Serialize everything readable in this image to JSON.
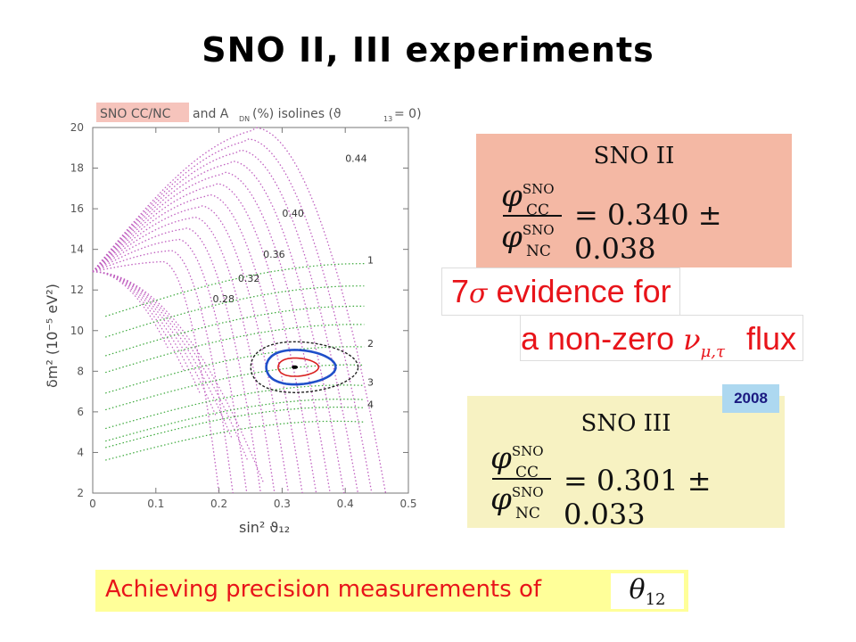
{
  "title": "SNO II, III experiments",
  "chart_data": {
    "type": "line",
    "title_box": "SNO  CC/NC",
    "title_rest": "and  A",
    "title_sub": "DN",
    "title_tail": "(%)  isolines  (ϑ",
    "title_sub2": "13",
    "title_end": "= 0)",
    "xlabel": "sin² ϑ₁₂",
    "ylabel": "δm²  (10⁻⁵ eV²)",
    "xlim": [
      0,
      0.5
    ],
    "ylim": [
      2,
      20
    ],
    "xticks": [
      "0",
      "0.1",
      "0.2",
      "0.3",
      "0.4",
      "0.5"
    ],
    "yticks": [
      "2",
      "4",
      "6",
      "8",
      "10",
      "12",
      "14",
      "16",
      "18",
      "20"
    ],
    "ccnc_isolines": [
      {
        "label": "0.28",
        "label_at": [
          0.19,
          11.4
        ]
      },
      {
        "label": "0.32",
        "label_at": [
          0.23,
          12.4
        ]
      },
      {
        "label": "0.36",
        "label_at": [
          0.27,
          13.6
        ]
      },
      {
        "label": "0.40",
        "label_at": [
          0.3,
          15.6
        ]
      },
      {
        "label": "0.44",
        "label_at": [
          0.4,
          18.3
        ]
      }
    ],
    "adn_isolines": [
      {
        "label": "1",
        "label_at": [
          0.435,
          13.3
        ]
      },
      {
        "label": "2",
        "label_at": [
          0.435,
          9.2
        ]
      },
      {
        "label": "3",
        "label_at": [
          0.435,
          7.3
        ]
      },
      {
        "label": "4",
        "label_at": [
          0.435,
          6.2
        ]
      }
    ],
    "best_fit": [
      0.32,
      8.2
    ],
    "contours": [
      {
        "level": "inner",
        "color": "#d92020"
      },
      {
        "level": "middle",
        "color": "#1f4fc9"
      },
      {
        "level": "outer",
        "color": "#222222"
      }
    ],
    "colors": {
      "ccnc": "#c060c0",
      "adn": "#3aa83a",
      "inner": "#d92020",
      "middle": "#1f4fc9",
      "outer": "#222222"
    }
  },
  "sno2": {
    "heading": "SNO II",
    "num_sup": "SNO",
    "num_sub": "CC",
    "den_sup": "SNO",
    "den_sub": "NC",
    "value": "= 0.340 ± 0.038"
  },
  "sno3": {
    "heading": "SNO III",
    "num_sup": "SNO",
    "num_sub": "CC",
    "den_sup": "SNO",
    "den_sub": "NC",
    "value": "= 0.301 ± 0.033"
  },
  "evidence": {
    "line1_prefix": "7",
    "line1_sigma": "σ",
    "line1_text": "evidence for",
    "line2_text": "a non-zero",
    "line2_nu": "ν",
    "line2_sub": "μ,τ",
    "line2_end": "flux"
  },
  "year_badge": "2008",
  "footer": {
    "text": "Achieving  precision measurements of",
    "theta": "θ",
    "theta_sub": "12"
  }
}
